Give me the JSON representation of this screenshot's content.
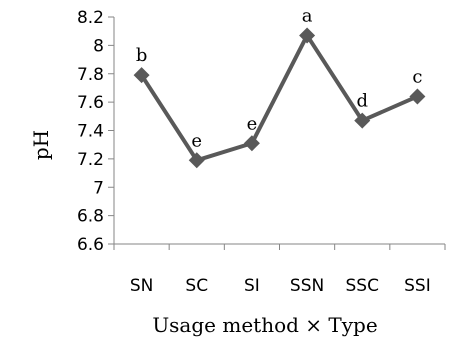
{
  "chart_data": {
    "type": "line",
    "categories": [
      "SN",
      "SC",
      "SI",
      "SSN",
      "SSC",
      "SSI"
    ],
    "series": [
      {
        "values": [
          7.79,
          7.19,
          7.31,
          8.07,
          7.47,
          7.64
        ]
      }
    ],
    "significance_labels": [
      "b",
      "e",
      "e",
      "a",
      "d",
      "c"
    ],
    "xlabel": "Usage method × Type",
    "ylabel": "pH",
    "ylim": [
      6.6,
      8.2
    ],
    "yticks": [
      "8.2",
      "8",
      "7.8",
      "7.6",
      "7.4",
      "7.2",
      "7",
      "6.8",
      "6.6"
    ],
    "grid": false,
    "marker": "diamond",
    "line_color": "#595959"
  }
}
